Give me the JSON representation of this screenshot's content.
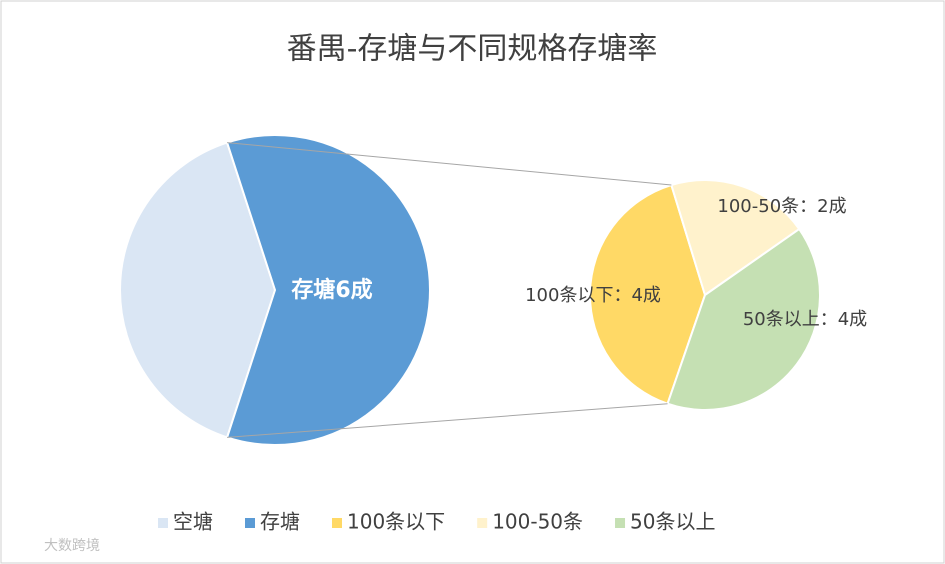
{
  "chart_data": [
    {
      "type": "pie",
      "title": "番禺-存塘与不同规格存塘率",
      "categories": [
        "空塘",
        "存塘"
      ],
      "values": [
        4,
        6
      ],
      "value_labels": [
        null,
        "存塘6成"
      ],
      "colors": [
        "#dae6f4",
        "#5b9bd5"
      ]
    },
    {
      "type": "pie",
      "categories": [
        "100条以下",
        "100-50条",
        "50条以上"
      ],
      "values": [
        4,
        2,
        4
      ],
      "value_labels": [
        "100条以下：4成",
        "100-50条：2成",
        "50条以上：4成"
      ],
      "colors": [
        "#ffd966",
        "#fff2cc",
        "#c5e0b3"
      ]
    }
  ],
  "watermark": "大数跨境"
}
